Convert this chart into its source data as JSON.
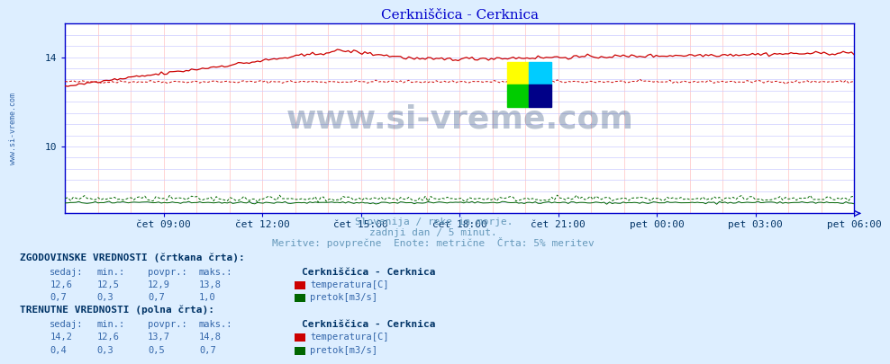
{
  "title": "Cerkniščica - Cerknica",
  "title_color": "#0000cc",
  "bg_color": "#ddeeff",
  "plot_bg_color": "#ffffff",
  "x_tick_labels": [
    "čet 09:00",
    "čet 12:00",
    "čet 15:00",
    "čet 18:00",
    "čet 21:00",
    "pet 00:00",
    "pet 03:00",
    "pet 06:00"
  ],
  "y_ticks": [
    10,
    14
  ],
  "y_min": 7.0,
  "y_max": 15.5,
  "subtitle1": "Slovenija / reke in morje.",
  "subtitle2": "zadnji dan / 5 minut.",
  "subtitle3": "Meritve: povprečne  Enote: metrične  Črta: 5% meritev",
  "subtitle_color": "#6699bb",
  "watermark": "www.si-vreme.com",
  "watermark_color": "#1a3a6a",
  "grid_v_color": "#ffcccc",
  "grid_h_color": "#ccccff",
  "axis_color": "#0000cc",
  "temp_color": "#cc0000",
  "flow_color": "#006600",
  "legend_station": "Cerkniščica - Cerknica",
  "legend_temp": "temperatura[C]",
  "legend_flow": "pretok[m3/s]",
  "hist_header": "ZGODOVINSKE VREDNOSTI (črtkana črta):",
  "curr_header": "TRENUTNE VREDNOSTI (polna črta):",
  "col_headers": [
    "sedaj:",
    "min.:",
    "povpr.:",
    "maks.:"
  ],
  "hist_temp_vals": [
    "12,6",
    "12,5",
    "12,9",
    "13,8"
  ],
  "hist_flow_vals": [
    "0,7",
    "0,3",
    "0,7",
    "1,0"
  ],
  "curr_temp_vals": [
    "14,2",
    "12,6",
    "13,7",
    "14,8"
  ],
  "curr_flow_vals": [
    "0,4",
    "0,3",
    "0,5",
    "0,7"
  ],
  "text_dark": "#003366",
  "text_blue": "#3366aa",
  "logo_colors": [
    "#ffff00",
    "#00ccff",
    "#00cc00",
    "#000088"
  ]
}
